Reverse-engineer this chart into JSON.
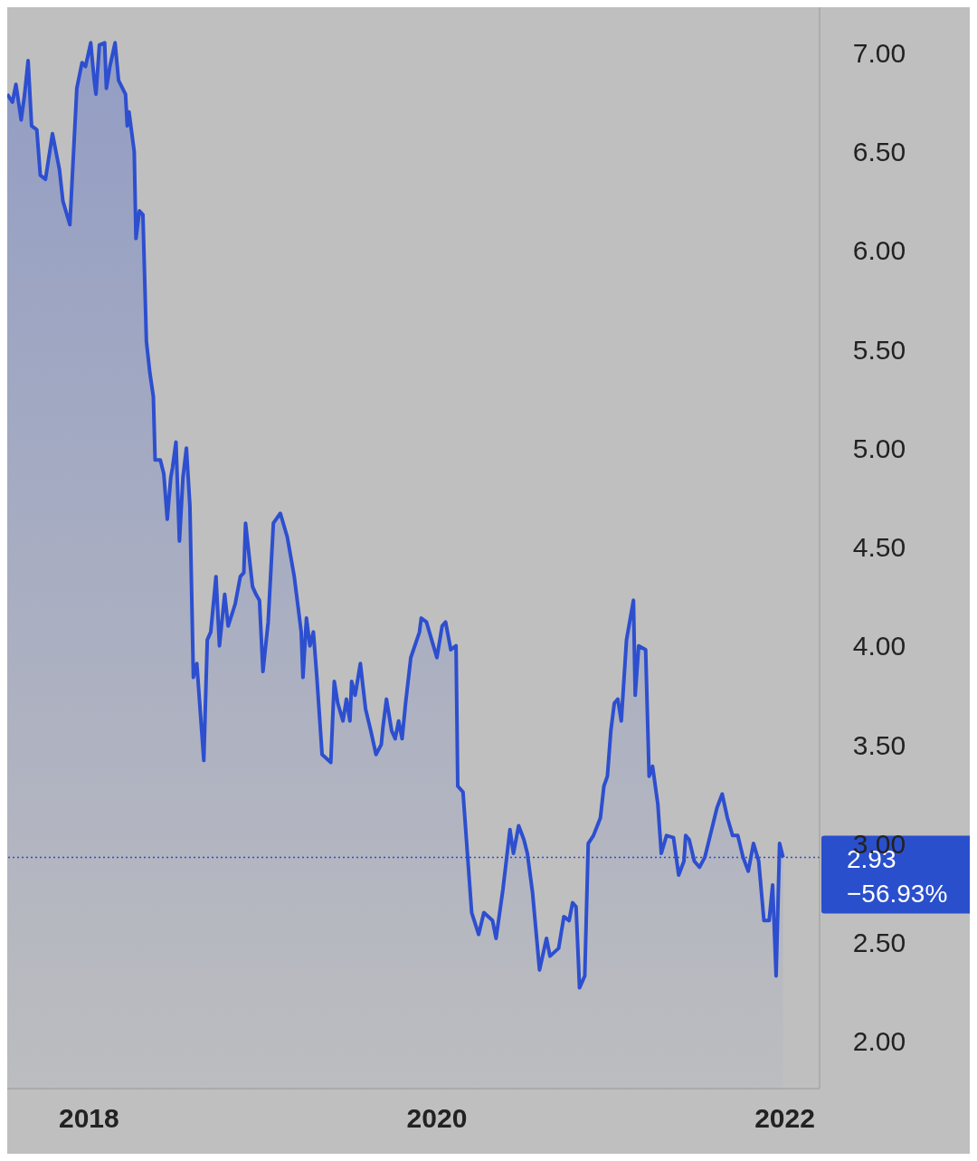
{
  "chart_data": {
    "type": "area",
    "xlim": [
      2017.53,
      2022.2
    ],
    "xticks": [
      2018,
      2020,
      2022
    ],
    "ylim": [
      1.76,
      7.23
    ],
    "yticks": [
      {
        "value": 2,
        "label": "2.00"
      },
      {
        "value": 2.5,
        "label": "2.50"
      },
      {
        "value": 3,
        "label": "3.00"
      },
      {
        "value": 3.5,
        "label": "3.50"
      },
      {
        "value": 4,
        "label": "4.00"
      },
      {
        "value": 4.5,
        "label": "4.50"
      },
      {
        "value": 5,
        "label": "5.00"
      },
      {
        "value": 5.5,
        "label": "5.50"
      },
      {
        "value": 6,
        "label": "6.00"
      },
      {
        "value": 6.5,
        "label": "6.50"
      },
      {
        "value": 7,
        "label": "7.00"
      }
    ],
    "grid": false,
    "ref_lines": [
      {
        "axis": "y",
        "value": 2.93,
        "label": "2.93",
        "color": "#2a4fcc",
        "line_style": "dotted"
      }
    ],
    "annotations": [
      "−56.93%"
    ],
    "series": [
      {
        "color": "#2d4fcf",
        "x": [
          2017.53,
          2017.56,
          2017.58,
          2017.61,
          2017.63,
          2017.65,
          2017.67,
          2017.7,
          2017.72,
          2017.75,
          2017.79,
          2017.83,
          2017.85,
          2017.89,
          2017.93,
          2017.96,
          2017.98,
          2018.01,
          2018.03,
          2018.04,
          2018.06,
          2018.09,
          2018.1,
          2018.12,
          2018.15,
          2018.17,
          2018.21,
          2018.22,
          2018.23,
          2018.26,
          2018.27,
          2018.29,
          2018.31,
          2018.33,
          2018.35,
          2018.37,
          2018.38,
          2018.41,
          2018.43,
          2018.45,
          2018.47,
          2018.48,
          2018.5,
          2018.52,
          2018.54,
          2018.56,
          2018.58,
          2018.6,
          2018.62,
          2018.66,
          2018.68,
          2018.7,
          2018.73,
          2018.75,
          2018.78,
          2018.8,
          2018.84,
          2018.87,
          2018.89,
          2018.9,
          2018.94,
          2018.96,
          2018.98,
          2019.0,
          2019.03,
          2019.06,
          2019.1,
          2019.14,
          2019.18,
          2019.22,
          2019.23,
          2019.25,
          2019.27,
          2019.29,
          2019.31,
          2019.34,
          2019.39,
          2019.41,
          2019.43,
          2019.46,
          2019.48,
          2019.5,
          2019.51,
          2019.53,
          2019.56,
          2019.59,
          2019.62,
          2019.65,
          2019.68,
          2019.69,
          2019.71,
          2019.74,
          2019.76,
          2019.78,
          2019.8,
          2019.82,
          2019.85,
          2019.9,
          2019.91,
          2019.94,
          2019.97,
          2020.0,
          2020.03,
          2020.05,
          2020.08,
          2020.11,
          2020.12,
          2020.15,
          2020.2,
          2020.24,
          2020.27,
          2020.32,
          2020.34,
          2020.38,
          2020.42,
          2020.44,
          2020.47,
          2020.5,
          2020.52,
          2020.55,
          2020.59,
          2020.63,
          2020.65,
          2020.7,
          2020.73,
          2020.76,
          2020.78,
          2020.8,
          2020.82,
          2020.85,
          2020.87,
          2020.9,
          2020.94,
          2020.96,
          2020.98,
          2021.0,
          2021.02,
          2021.04,
          2021.06,
          2021.09,
          2021.13,
          2021.14,
          2021.16,
          2021.2,
          2021.22,
          2021.24,
          2021.27,
          2021.29,
          2021.32,
          2021.36,
          2021.39,
          2021.42,
          2021.43,
          2021.45,
          2021.48,
          2021.51,
          2021.54,
          2021.56,
          2021.61,
          2021.64,
          2021.67,
          2021.7,
          2021.73,
          2021.76,
          2021.79,
          2021.82,
          2021.85,
          2021.88,
          2021.91,
          2021.93,
          2021.95,
          2021.97,
          2021.99
        ],
        "values": [
          6.79,
          6.75,
          6.84,
          6.66,
          6.79,
          6.96,
          6.63,
          6.61,
          6.38,
          6.36,
          6.59,
          6.41,
          6.25,
          6.13,
          6.82,
          6.95,
          6.93,
          7.05,
          6.86,
          6.79,
          7.04,
          7.05,
          6.82,
          6.93,
          7.05,
          6.86,
          6.79,
          6.63,
          6.7,
          6.5,
          6.06,
          6.2,
          6.18,
          5.54,
          5.38,
          5.26,
          4.94,
          4.94,
          4.87,
          4.64,
          4.85,
          4.9,
          5.03,
          4.53,
          4.85,
          5.0,
          4.71,
          3.84,
          3.91,
          3.42,
          4.03,
          4.07,
          4.35,
          4.0,
          4.26,
          4.1,
          4.21,
          4.35,
          4.37,
          4.62,
          4.3,
          4.26,
          4.23,
          3.87,
          4.12,
          4.62,
          4.67,
          4.55,
          4.35,
          4.07,
          3.84,
          4.14,
          4.0,
          4.07,
          3.84,
          3.45,
          3.41,
          3.82,
          3.71,
          3.62,
          3.73,
          3.62,
          3.82,
          3.75,
          3.91,
          3.68,
          3.57,
          3.45,
          3.5,
          3.59,
          3.73,
          3.57,
          3.53,
          3.62,
          3.53,
          3.71,
          3.94,
          4.07,
          4.14,
          4.12,
          4.03,
          3.94,
          4.1,
          4.12,
          3.98,
          4.0,
          3.29,
          3.26,
          2.65,
          2.54,
          2.65,
          2.61,
          2.52,
          2.77,
          3.07,
          2.95,
          3.09,
          3.02,
          2.95,
          2.75,
          2.36,
          2.52,
          2.43,
          2.47,
          2.63,
          2.61,
          2.7,
          2.68,
          2.27,
          2.33,
          3.0,
          3.04,
          3.13,
          3.29,
          3.34,
          3.57,
          3.71,
          3.73,
          3.62,
          4.03,
          4.23,
          3.75,
          4.0,
          3.98,
          3.34,
          3.39,
          3.2,
          2.95,
          3.04,
          3.03,
          2.84,
          2.91,
          3.04,
          3.02,
          2.91,
          2.88,
          2.93,
          3.0,
          3.18,
          3.25,
          3.13,
          3.04,
          3.04,
          2.93,
          2.86,
          3.0,
          2.91,
          2.61,
          2.61,
          2.79,
          2.33,
          3.0,
          2.93
        ]
      }
    ]
  }
}
